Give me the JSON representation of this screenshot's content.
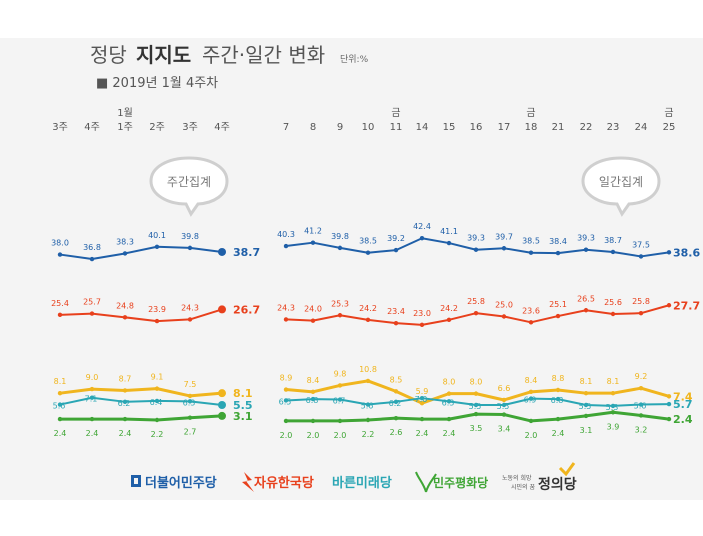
{
  "header": {
    "title_part1": "정당",
    "title_part2": "지지도",
    "title_part3": "주간·일간 변화",
    "unit": "단위:%",
    "subtitle": "■ 2019년 1월 4주차"
  },
  "bubbles": {
    "weekly": "주간집계",
    "daily": "일간집계"
  },
  "colors": {
    "democratic": "#1f5fa8",
    "liberty": "#e8401c",
    "bareun": "#2aa6b4",
    "peace": "#3fa535",
    "justice": "#f0b51e"
  },
  "chart_data": [
    {
      "type": "line",
      "title": "주간집계",
      "categories": [
        "3주",
        "4주",
        "1월 1주",
        "2주",
        "3주",
        "4주"
      ],
      "category_prefix": [
        "",
        "",
        "1월",
        "",
        "",
        ""
      ],
      "category_main": [
        "3주",
        "4주",
        "1주",
        "2주",
        "3주",
        "4주"
      ],
      "ylim": [
        0,
        45
      ],
      "series": [
        {
          "name": "더불어민주당",
          "color": "#1f5fa8",
          "values": [
            38.0,
            36.8,
            38.3,
            40.1,
            39.8,
            38.7
          ],
          "labels": [
            "38.0",
            "36.8",
            "38.3",
            "40.1",
            "39.8",
            "38.7"
          ]
        },
        {
          "name": "자유한국당",
          "color": "#e8401c",
          "values": [
            25.4,
            25.7,
            24.8,
            23.9,
            24.3,
            26.7
          ],
          "labels": [
            "25.4",
            "25.7",
            "24.8",
            "23.9",
            "24.3",
            "26.7"
          ]
        },
        {
          "name": "정의당",
          "color": "#f0b51e",
          "values": [
            8.1,
            9.0,
            8.7,
            9.1,
            7.5,
            8.1
          ],
          "labels": [
            "8.1",
            "9.0",
            "8.7",
            "9.1",
            "7.5",
            "8.1"
          ]
        },
        {
          "name": "바른미래당",
          "color": "#2aa6b4",
          "values": [
            5.6,
            7.1,
            6.2,
            6.4,
            6.3,
            5.5
          ],
          "labels": [
            "5.6",
            "7.1",
            "6.2",
            "6.4",
            "6.3",
            "5.5"
          ]
        },
        {
          "name": "민주평화당",
          "color": "#3fa535",
          "values": [
            2.4,
            2.4,
            2.4,
            2.2,
            2.7,
            3.1
          ],
          "labels": [
            "2.4",
            "2.4",
            "2.4",
            "2.2",
            "2.7",
            "3.1"
          ]
        }
      ]
    },
    {
      "type": "line",
      "title": "일간집계",
      "categories": [
        "7",
        "8",
        "9",
        "10",
        "금 11",
        "14",
        "15",
        "16",
        "17",
        "금 18",
        "21",
        "22",
        "23",
        "24",
        "금 25"
      ],
      "category_prefix": [
        "",
        "",
        "",
        "",
        "금",
        "",
        "",
        "",
        "",
        "금",
        "",
        "",
        "",
        "",
        "금"
      ],
      "category_main": [
        "7",
        "8",
        "9",
        "10",
        "11",
        "14",
        "15",
        "16",
        "17",
        "18",
        "21",
        "22",
        "23",
        "24",
        "25"
      ],
      "ylim": [
        0,
        45
      ],
      "series": [
        {
          "name": "더불어민주당",
          "color": "#1f5fa8",
          "values": [
            40.3,
            41.2,
            39.8,
            38.5,
            39.2,
            42.4,
            41.1,
            39.3,
            39.7,
            38.5,
            38.4,
            39.3,
            38.7,
            37.5,
            38.6
          ],
          "labels": [
            "40.3",
            "41.2",
            "39.8",
            "38.5",
            "39.2",
            "42.4",
            "41.1",
            "39.3",
            "39.7",
            "38.5",
            "38.4",
            "39.3",
            "38.7",
            "37.5",
            "38.6"
          ]
        },
        {
          "name": "자유한국당",
          "color": "#e8401c",
          "values": [
            24.3,
            24.0,
            25.3,
            24.2,
            23.4,
            23.0,
            24.2,
            25.8,
            25.0,
            23.6,
            25.1,
            26.5,
            25.6,
            25.8,
            27.7
          ],
          "labels": [
            "24.3",
            "24.0",
            "25.3",
            "24.2",
            "23.4",
            "23.0",
            "24.2",
            "25.8",
            "25.0",
            "23.6",
            "25.1",
            "26.5",
            "25.6",
            "25.8",
            "27.7"
          ]
        },
        {
          "name": "정의당",
          "color": "#f0b51e",
          "values": [
            8.9,
            8.4,
            9.8,
            10.8,
            8.5,
            5.9,
            8.0,
            8.0,
            6.6,
            8.4,
            8.8,
            8.1,
            8.1,
            9.2,
            7.4
          ],
          "labels": [
            "8.9",
            "8.4",
            "9.8",
            "10.8",
            "8.5",
            "5.9",
            "8.0",
            "8.0",
            "6.6",
            "8.4",
            "8.8",
            "8.1",
            "8.1",
            "9.2",
            "7.4"
          ]
        },
        {
          "name": "바른미래당",
          "color": "#2aa6b4",
          "values": [
            6.5,
            6.8,
            6.7,
            5.6,
            6.2,
            7.0,
            6.3,
            5.5,
            5.5,
            6.9,
            6.8,
            5.5,
            5.3,
            5.6,
            5.7
          ],
          "labels": [
            "6.5",
            "6.8",
            "6.7",
            "5.6",
            "6.2",
            "7.0",
            "6.3",
            "5.5",
            "5.5",
            "6.9",
            "6.8",
            "5.5",
            "5.3",
            "5.6",
            "5.7"
          ]
        },
        {
          "name": "민주평화당",
          "color": "#3fa535",
          "values": [
            2.0,
            2.0,
            2.0,
            2.2,
            2.6,
            2.4,
            2.4,
            3.5,
            3.4,
            2.0,
            2.4,
            3.1,
            3.9,
            3.2,
            2.4
          ],
          "labels": [
            "2.0",
            "2.0",
            "2.0",
            "2.2",
            "2.6",
            "2.4",
            "2.4",
            "3.5",
            "3.4",
            "2.0",
            "2.4",
            "3.1",
            "3.9",
            "3.2",
            "2.4"
          ]
        }
      ]
    }
  ],
  "legend": {
    "democratic": "더불어민주당",
    "liberty": "자유한국당",
    "bareun": "바른미래당",
    "peace": "민주평화당",
    "justice_small1": "노동의 희망",
    "justice_small2": "시민의 꿈",
    "justice": "정의당"
  }
}
